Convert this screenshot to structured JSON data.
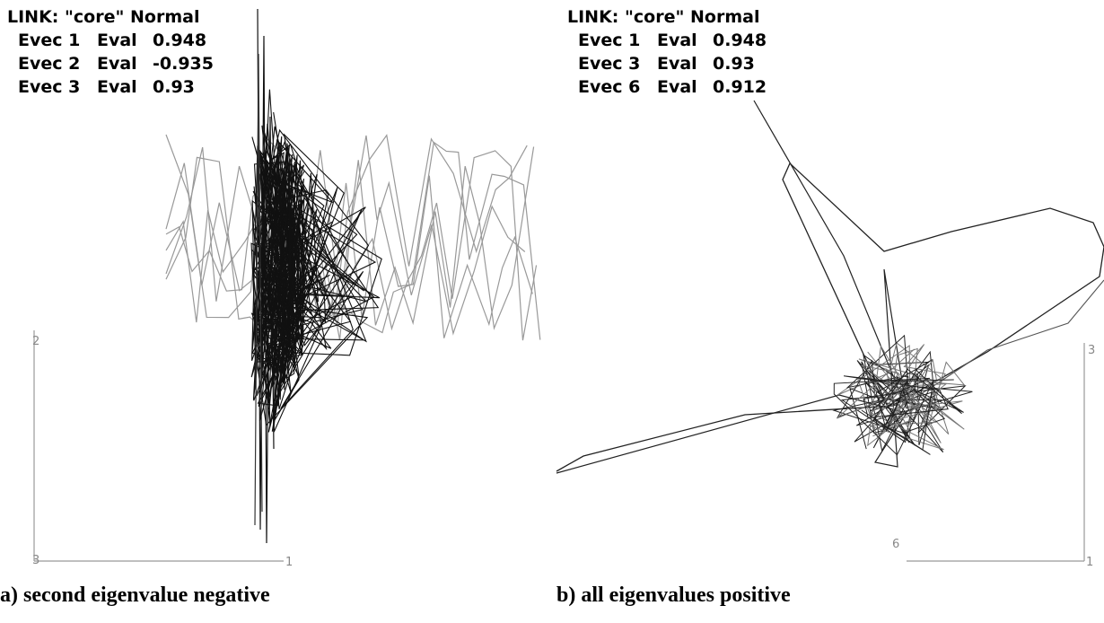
{
  "panels": [
    {
      "header": "LINK: \"core\" Normal",
      "evecs": [
        {
          "name": "Evec 1",
          "eval_label": "Eval",
          "value": 0.948
        },
        {
          "name": "Evec 2",
          "eval_label": "Eval",
          "value": -0.935
        },
        {
          "name": "Evec 3",
          "eval_label": "Eval",
          "value": 0.93
        }
      ],
      "axis_labels": [
        "2",
        "3",
        "1"
      ],
      "caption": "a) second eigenvalue negative"
    },
    {
      "header": "LINK: \"core\" Normal",
      "evecs": [
        {
          "name": "Evec 1",
          "eval_label": "Eval",
          "value": 0.948
        },
        {
          "name": "Evec 3",
          "eval_label": "Eval",
          "value": 0.93
        },
        {
          "name": "Evec 6",
          "eval_label": "Eval",
          "value": 0.912
        }
      ],
      "axis_labels": [
        "3",
        "6",
        "1"
      ],
      "caption": "b) all eigenvalues positive"
    }
  ]
}
